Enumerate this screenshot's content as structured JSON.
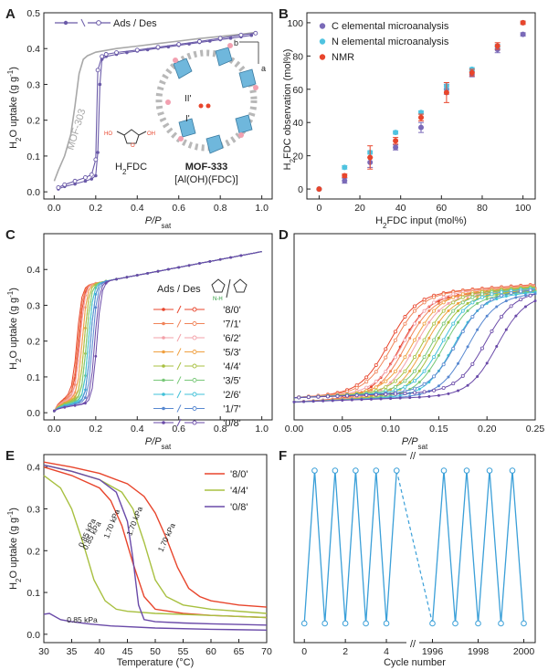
{
  "panels": {
    "A": {
      "label": "A",
      "ylabel_main": "H",
      "ylabel_sub": "2",
      "ylabel_rest": "O uptake (g g",
      "ylabel_sup": "-1",
      "ylabel_close": ")",
      "xlabel_main": "P/P",
      "xlabel_sub": "sat",
      "legend": "Ads / Des",
      "mof303_label": "MOF-303",
      "mof333_label": "MOF-333",
      "formula_label": "[Al(OH)(FDC)]",
      "h2fdc_label_main": "H",
      "h2fdc_label_sub": "2",
      "h2fdc_label_rest": "FDC",
      "site1": "I'",
      "site2": "II'",
      "axis_a": "a",
      "axis_b": "b",
      "ho": "HO",
      "oh": "OH",
      "o": "O"
    },
    "B": {
      "label": "B",
      "ylabel_main": "H",
      "ylabel_sub": "2",
      "ylabel_rest": "FDC observation (mol%)",
      "xlabel_main": "H",
      "xlabel_sub": "2",
      "xlabel_rest": "FDC input (mol%)"
    },
    "C": {
      "label": "C",
      "ylabel_main": "H",
      "ylabel_sub": "2",
      "ylabel_rest": "O uptake (g g",
      "ylabel_sup": "-1",
      "ylabel_close": ")",
      "xlabel_main": "P/P",
      "xlabel_sub": "sat",
      "legend_title": "Ads / Des",
      "nh": "N-H"
    },
    "D": {
      "label": "D",
      "xlabel_main": "P/P",
      "xlabel_sub": "sat"
    },
    "E": {
      "label": "E",
      "ylabel_main": "H",
      "ylabel_sub": "2",
      "ylabel_rest": "O uptake (g g",
      "ylabel_sup": "-1",
      "ylabel_close": ")",
      "xlabel": "Temperature (°C)"
    },
    "F": {
      "label": "F",
      "xlabel": "Cycle number",
      "break_mark": "//"
    }
  },
  "colors": {
    "mof303": "#a8a8a8",
    "mof333": "#6a5aa8",
    "c_micro": "#7a6ab8",
    "n_micro": "#4fc3e0",
    "nmr": "#e8452c",
    "cycle": "#3a9fd8",
    "series": {
      "8/0": "#e8452c",
      "7/1": "#f0845a",
      "6/2": "#f3a0a8",
      "5/3": "#f0a040",
      "4/4": "#a8c040",
      "3/5": "#78c878",
      "2/6": "#40c0d8",
      "1/7": "#5888d0",
      "0/8": "#6a4aa8"
    }
  },
  "chart_data": [
    {
      "panel": "A",
      "type": "line",
      "xlabel": "P/Psat",
      "ylabel": "H2O uptake (g g-1)",
      "xlim": [
        -0.05,
        1.05
      ],
      "ylim": [
        -0.02,
        0.5
      ],
      "xticks": [
        "0.0",
        "0.2",
        "0.4",
        "0.6",
        "0.8",
        "1.0"
      ],
      "yticks": [
        "0.0",
        "0.1",
        "0.2",
        "0.3",
        "0.4",
        "0.5"
      ],
      "series": [
        {
          "name": "MOF-303",
          "x": [
            0.0,
            0.02,
            0.05,
            0.08,
            0.1,
            0.12,
            0.14,
            0.16,
            0.18,
            0.2,
            0.25,
            0.3,
            0.4,
            0.5,
            0.6,
            0.7,
            0.8,
            0.9,
            0.97
          ],
          "y": [
            0.03,
            0.06,
            0.1,
            0.16,
            0.24,
            0.33,
            0.37,
            0.38,
            0.385,
            0.39,
            0.395,
            0.4,
            0.407,
            0.414,
            0.421,
            0.428,
            0.434,
            0.44,
            0.445
          ]
        },
        {
          "name": "MOF-333 ads",
          "x": [
            0.02,
            0.05,
            0.1,
            0.15,
            0.18,
            0.2,
            0.21,
            0.22,
            0.23,
            0.25,
            0.3,
            0.35,
            0.4,
            0.45,
            0.5,
            0.55,
            0.6,
            0.65,
            0.7,
            0.75,
            0.8,
            0.85,
            0.9,
            0.95
          ],
          "y": [
            0.008,
            0.015,
            0.022,
            0.03,
            0.036,
            0.045,
            0.11,
            0.3,
            0.37,
            0.378,
            0.384,
            0.389,
            0.393,
            0.397,
            0.401,
            0.405,
            0.409,
            0.413,
            0.417,
            0.421,
            0.425,
            0.429,
            0.433,
            0.437
          ]
        },
        {
          "name": "MOF-333 des",
          "x": [
            0.97,
            0.9,
            0.8,
            0.7,
            0.6,
            0.5,
            0.4,
            0.3,
            0.25,
            0.23,
            0.21,
            0.2,
            0.18,
            0.15,
            0.1,
            0.05,
            0.02
          ],
          "y": [
            0.443,
            0.438,
            0.429,
            0.42,
            0.412,
            0.404,
            0.396,
            0.389,
            0.384,
            0.378,
            0.34,
            0.09,
            0.048,
            0.04,
            0.03,
            0.02,
            0.012
          ]
        }
      ]
    },
    {
      "panel": "B",
      "type": "scatter",
      "xlabel": "H2FDC input (mol%)",
      "ylabel": "H2FDC observation (mol%)",
      "xlim": [
        -6,
        106
      ],
      "ylim": [
        -6,
        106
      ],
      "xticks": [
        "0",
        "20",
        "40",
        "60",
        "80",
        "100"
      ],
      "yticks": [
        "0",
        "20",
        "40",
        "60",
        "80",
        "100"
      ],
      "x": [
        0,
        12.5,
        25,
        37.5,
        50,
        62.5,
        75,
        87.5,
        100
      ],
      "series": [
        {
          "name": "C elemental microanalysis",
          "values": [
            0,
            5,
            16,
            25,
            37,
            60,
            69,
            84,
            93
          ]
        },
        {
          "name": "N elemental microanalysis",
          "values": [
            0,
            13,
            22,
            34,
            46,
            62,
            72,
            86,
            100
          ]
        },
        {
          "name": "NMR",
          "values": [
            0,
            8,
            19,
            29,
            43,
            58,
            70,
            86,
            100
          ]
        }
      ]
    },
    {
      "panel": "C",
      "type": "line",
      "xlabel": "P/Psat",
      "ylabel": "H2O uptake (g g-1)",
      "xlim": [
        -0.05,
        1.05
      ],
      "ylim": [
        -0.02,
        0.5
      ],
      "xticks": [
        "0.0",
        "0.2",
        "0.4",
        "0.6",
        "0.8",
        "1.0"
      ],
      "yticks": [
        "0.0",
        "0.1",
        "0.2",
        "0.3",
        "0.4"
      ],
      "step_x": [
        0.12,
        0.125,
        0.135,
        0.145,
        0.155,
        0.165,
        0.175,
        0.185,
        0.205
      ],
      "legend": [
        "'8/0'",
        "'7/1'",
        "'6/2'",
        "'5/3'",
        "'4/4'",
        "'3/5'",
        "'2/6'",
        "'1/7'",
        "'0/8'"
      ],
      "series_keys": [
        "8/0",
        "7/1",
        "6/2",
        "5/3",
        "4/4",
        "3/5",
        "2/6",
        "1/7",
        "0/8"
      ]
    },
    {
      "panel": "D",
      "type": "line",
      "xlabel": "P/Psat",
      "xlim": [
        0,
        0.25
      ],
      "xticks": [
        "0.00",
        "0.05",
        "0.10",
        "0.15",
        "0.20",
        "0.25"
      ],
      "step_x": [
        0.11,
        0.115,
        0.125,
        0.135,
        0.145,
        0.155,
        0.165,
        0.18,
        0.21
      ],
      "series_keys": [
        "8/0",
        "7/1",
        "6/2",
        "5/3",
        "4/4",
        "3/5",
        "2/6",
        "1/7",
        "0/8"
      ]
    },
    {
      "panel": "E",
      "type": "line",
      "xlabel": "Temperature (°C)",
      "ylabel": "H2O uptake (g g-1)",
      "xlim": [
        30,
        70
      ],
      "ylim": [
        -0.02,
        0.43
      ],
      "xticks": [
        "30",
        "35",
        "40",
        "45",
        "50",
        "55",
        "60",
        "65",
        "70"
      ],
      "yticks": [
        "0.0",
        "0.1",
        "0.2",
        "0.3",
        "0.4"
      ],
      "legend": [
        "'8/0'",
        "'4/4'",
        "'0/8'"
      ],
      "series": [
        {
          "name": "'8/0' 1.70 kPa",
          "key": "8/0",
          "x": [
            30,
            35,
            40,
            45,
            48,
            50,
            52,
            54,
            56,
            58,
            60,
            65,
            70
          ],
          "y": [
            0.412,
            0.4,
            0.385,
            0.36,
            0.33,
            0.29,
            0.23,
            0.16,
            0.11,
            0.09,
            0.08,
            0.07,
            0.065
          ]
        },
        {
          "name": "'8/0' 0.85 kPa",
          "key": "8/0",
          "x": [
            30,
            35,
            40,
            42,
            44,
            46,
            48,
            50,
            55,
            60,
            70
          ],
          "y": [
            0.4,
            0.38,
            0.35,
            0.32,
            0.26,
            0.17,
            0.09,
            0.06,
            0.05,
            0.045,
            0.04
          ]
        },
        {
          "name": "'4/4' 1.70 kPa",
          "key": "4/4",
          "x": [
            30,
            35,
            40,
            44,
            46,
            48,
            50,
            52,
            55,
            60,
            70
          ],
          "y": [
            0.405,
            0.39,
            0.37,
            0.34,
            0.3,
            0.22,
            0.13,
            0.09,
            0.07,
            0.06,
            0.05
          ]
        },
        {
          "name": "'4/4' 0.85 kPa",
          "key": "4/4",
          "x": [
            30,
            33,
            35,
            37,
            39,
            41,
            43,
            45,
            50,
            60,
            70
          ],
          "y": [
            0.38,
            0.35,
            0.3,
            0.22,
            0.13,
            0.08,
            0.06,
            0.055,
            0.05,
            0.045,
            0.04
          ]
        },
        {
          "name": "'0/8' 1.70 kPa",
          "key": "0/8",
          "x": [
            30,
            35,
            40,
            43,
            45,
            46,
            47,
            48,
            50,
            55,
            60,
            70
          ],
          "y": [
            0.405,
            0.39,
            0.37,
            0.34,
            0.27,
            0.18,
            0.07,
            0.035,
            0.03,
            0.027,
            0.025,
            0.022
          ]
        },
        {
          "name": "'0/8' 0.85 kPa",
          "key": "0/8",
          "x": [
            30,
            31,
            33,
            35,
            38,
            42,
            50,
            60,
            70
          ],
          "y": [
            0.048,
            0.05,
            0.035,
            0.03,
            0.025,
            0.02,
            0.015,
            0.012,
            0.01
          ]
        }
      ],
      "annotations": [
        "0.85 kPa",
        "1.70 kPa",
        "1.70 kPa",
        "0.85 kPa",
        "1.70 kPa",
        "0.85 kPa"
      ]
    },
    {
      "panel": "F",
      "type": "line",
      "xlabel": "Cycle number",
      "xticks": [
        "0",
        "2",
        "4",
        "1996",
        "1998",
        "2000"
      ],
      "high": 0.41,
      "low": 0.028,
      "segment1_cycles": [
        0,
        5
      ],
      "segment2_cycles": [
        1996,
        2000
      ]
    }
  ]
}
